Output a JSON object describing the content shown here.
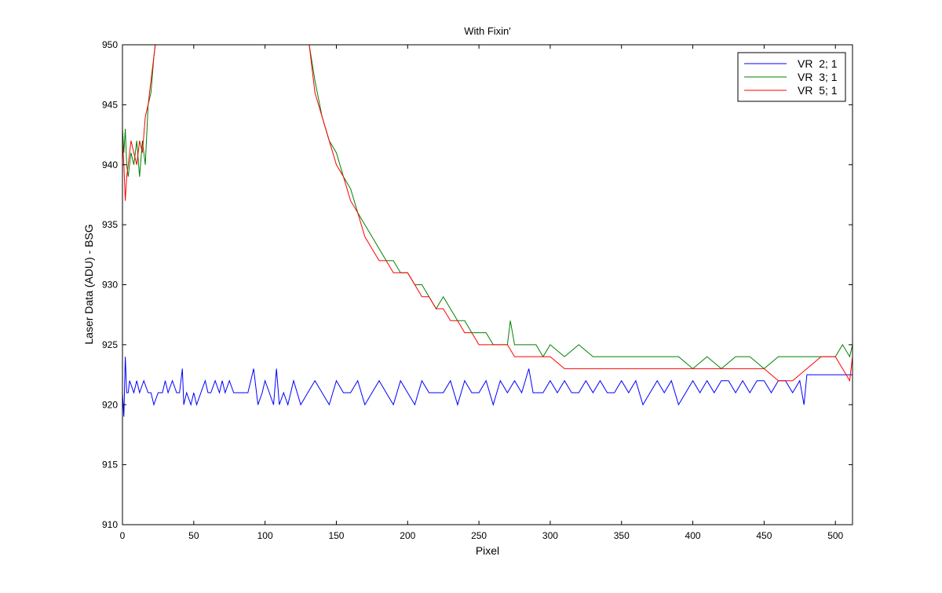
{
  "chart_data": {
    "type": "line",
    "title": "With Fixin'",
    "xlabel": "Pixel",
    "ylabel": "Laser Data (ADU) - BSG",
    "xlim": [
      0,
      512
    ],
    "ylim": [
      910,
      950
    ],
    "xticks": [
      0,
      50,
      100,
      150,
      200,
      250,
      300,
      350,
      400,
      450,
      500
    ],
    "yticks": [
      910,
      915,
      920,
      925,
      930,
      935,
      940,
      945,
      950
    ],
    "grid": false,
    "legend_position": "top-right",
    "series": [
      {
        "name": "VR  2; 1",
        "color": "#0000ff",
        "x": [
          0,
          1,
          2,
          3,
          4,
          5,
          8,
          10,
          12,
          15,
          18,
          20,
          22,
          25,
          28,
          30,
          32,
          35,
          38,
          40,
          42,
          43,
          45,
          48,
          50,
          52,
          55,
          58,
          60,
          62,
          65,
          68,
          70,
          72,
          75,
          78,
          80,
          83,
          86,
          88,
          90,
          92,
          95,
          98,
          100,
          103,
          106,
          108,
          110,
          113,
          116,
          120,
          125,
          130,
          135,
          140,
          145,
          150,
          155,
          160,
          165,
          170,
          175,
          180,
          185,
          190,
          195,
          200,
          205,
          210,
          215,
          220,
          225,
          230,
          235,
          240,
          245,
          250,
          255,
          260,
          265,
          270,
          275,
          280,
          285,
          288,
          290,
          295,
          300,
          305,
          310,
          315,
          320,
          325,
          330,
          335,
          340,
          345,
          350,
          355,
          360,
          365,
          370,
          375,
          380,
          385,
          390,
          395,
          400,
          405,
          410,
          415,
          420,
          425,
          430,
          435,
          440,
          445,
          450,
          455,
          460,
          465,
          470,
          475,
          478,
          480,
          485,
          490,
          495,
          500,
          505,
          510,
          512
        ],
        "y": [
          921,
          919,
          924,
          921,
          921,
          922,
          921,
          922,
          921,
          922,
          921,
          921,
          920,
          921,
          921,
          922,
          921,
          922,
          921,
          921,
          923,
          920,
          921,
          920,
          921,
          920,
          921,
          922,
          921,
          921,
          922,
          921,
          922,
          921,
          922,
          921,
          921,
          921,
          921,
          921,
          922,
          923,
          920,
          921,
          922,
          921,
          920,
          923,
          920,
          921,
          920,
          922,
          920,
          921,
          922,
          921,
          920,
          922,
          921,
          921,
          922,
          920,
          921,
          922,
          921,
          920,
          922,
          921,
          920,
          922,
          921,
          921,
          921,
          922,
          920,
          922,
          921,
          921,
          922,
          920,
          922,
          921,
          922,
          921,
          923,
          921,
          921,
          921,
          922,
          921,
          922,
          921,
          921,
          922,
          921,
          922,
          921,
          921,
          922,
          921,
          922,
          920,
          921,
          922,
          921,
          922,
          920,
          921,
          922,
          921,
          922,
          921,
          922,
          922,
          921,
          922,
          921,
          922,
          922,
          921,
          922,
          922,
          921,
          922,
          920,
          922.5,
          922.5,
          922.5,
          922.5,
          922.5,
          922.5,
          922.5,
          922.5
        ]
      },
      {
        "name": "VR  3; 1",
        "color": "#008000",
        "x": [
          0,
          1,
          2,
          3,
          4,
          6,
          8,
          10,
          12,
          14,
          16,
          18,
          20,
          22,
          23,
          131,
          135,
          140,
          145,
          150,
          155,
          160,
          165,
          170,
          175,
          180,
          185,
          190,
          195,
          200,
          205,
          210,
          215,
          220,
          225,
          230,
          235,
          240,
          245,
          250,
          255,
          260,
          265,
          270,
          272,
          275,
          280,
          285,
          290,
          295,
          300,
          310,
          320,
          330,
          340,
          350,
          360,
          370,
          380,
          390,
          400,
          410,
          420,
          430,
          440,
          450,
          460,
          470,
          480,
          490,
          500,
          505,
          510,
          512
        ],
        "y": [
          943,
          941,
          943,
          940,
          939,
          941,
          940,
          942,
          939,
          942,
          940,
          945,
          946,
          949,
          950,
          950,
          947,
          944,
          942,
          941,
          939,
          938,
          936,
          935,
          934,
          933,
          932,
          932,
          931,
          931,
          930,
          930,
          929,
          928,
          929,
          928,
          927,
          927,
          926,
          926,
          926,
          925,
          925,
          925,
          927,
          925,
          925,
          925,
          925,
          924,
          925,
          924,
          925,
          924,
          924,
          924,
          924,
          924,
          924,
          924,
          923,
          924,
          923,
          924,
          924,
          923,
          924,
          924,
          924,
          924,
          924,
          925,
          924,
          925
        ]
      },
      {
        "name": "VR  5; 1",
        "color": "#ff0000",
        "x": [
          0,
          1,
          2,
          3,
          4,
          6,
          8,
          10,
          12,
          14,
          16,
          18,
          20,
          22,
          23,
          131,
          135,
          140,
          145,
          150,
          155,
          160,
          165,
          170,
          175,
          180,
          185,
          190,
          195,
          200,
          205,
          210,
          215,
          220,
          225,
          230,
          235,
          240,
          245,
          250,
          255,
          260,
          265,
          270,
          275,
          280,
          285,
          290,
          295,
          300,
          310,
          320,
          330,
          340,
          350,
          360,
          370,
          380,
          390,
          400,
          410,
          420,
          430,
          440,
          450,
          460,
          470,
          480,
          490,
          500,
          505,
          510,
          512
        ],
        "y": [
          942,
          940,
          937,
          939,
          940,
          942,
          941,
          940,
          942,
          941,
          944,
          945,
          947,
          949,
          950,
          950,
          946,
          944,
          942,
          940,
          939,
          937,
          936,
          934,
          933,
          932,
          932,
          931,
          931,
          931,
          930,
          929,
          929,
          928,
          928,
          927,
          927,
          926,
          926,
          925,
          925,
          925,
          925,
          925,
          924,
          924,
          924,
          924,
          924,
          924,
          923,
          923,
          923,
          923,
          923,
          923,
          923,
          923,
          923,
          923,
          923,
          923,
          923,
          923,
          923,
          922,
          922,
          923,
          924,
          924,
          923,
          922,
          924
        ]
      }
    ]
  }
}
